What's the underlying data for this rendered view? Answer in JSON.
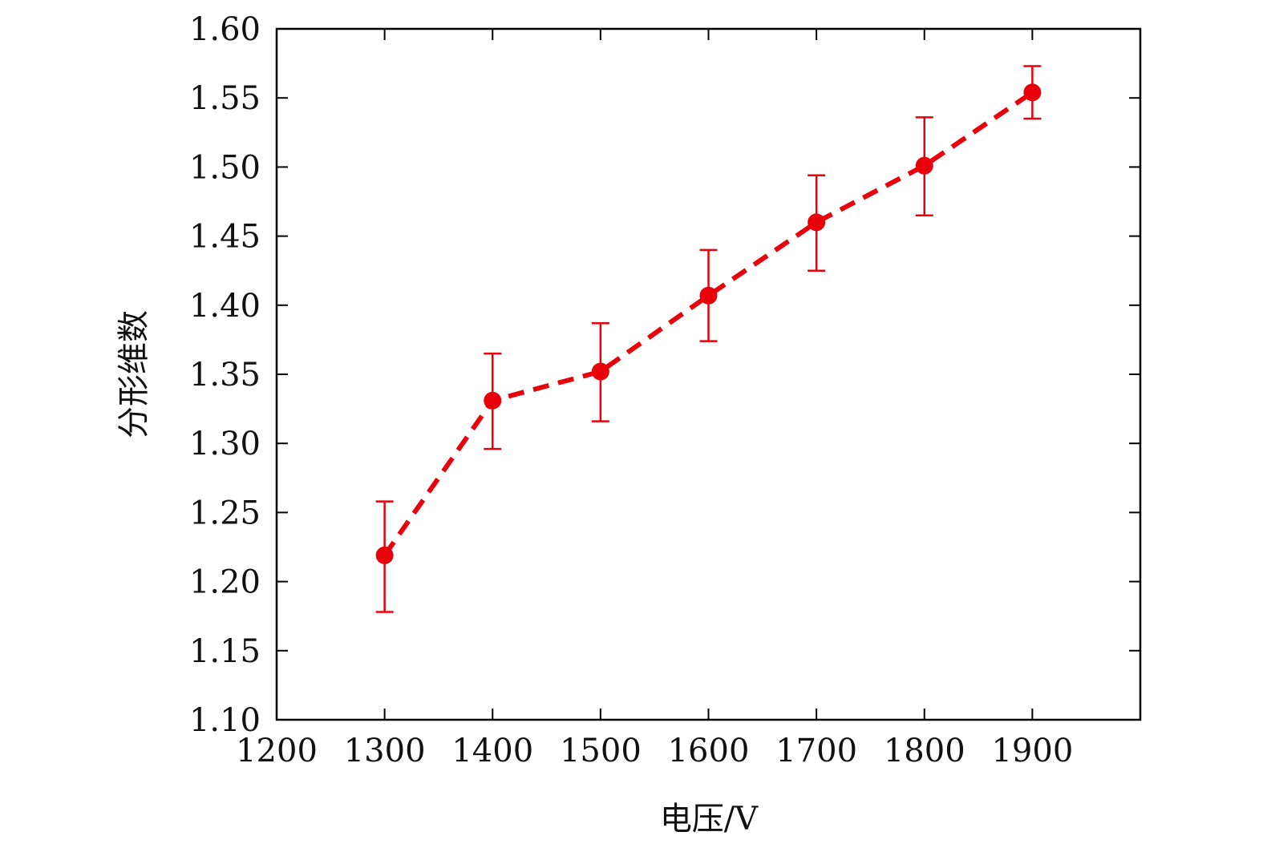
{
  "chart_data": {
    "type": "scatter",
    "title": "",
    "xlabel": "电压/V",
    "ylabel": "分形维数",
    "xlim": [
      1200,
      2000
    ],
    "ylim": [
      1.1,
      1.6
    ],
    "xticks": [
      "1200",
      "1300",
      "1400",
      "1500",
      "1600",
      "1700",
      "1800",
      "1900"
    ],
    "yticks": [
      "1.10",
      "1.15",
      "1.20",
      "1.25",
      "1.30",
      "1.35",
      "1.40",
      "1.45",
      "1.50",
      "1.55",
      "1.60"
    ],
    "grid": false,
    "legend": "none",
    "series": [
      {
        "color": "#e8000b",
        "line_style": "dashed",
        "marker": "circle",
        "x": [
          1300,
          1400,
          1500,
          1600,
          1700,
          1800,
          1900
        ],
        "y": [
          1.219,
          1.331,
          1.352,
          1.407,
          1.46,
          1.501,
          1.554
        ],
        "error_low": [
          1.178,
          1.296,
          1.316,
          1.374,
          1.425,
          1.465,
          1.535
        ],
        "error_high": [
          1.258,
          1.365,
          1.387,
          1.44,
          1.494,
          1.536,
          1.573
        ]
      }
    ]
  }
}
